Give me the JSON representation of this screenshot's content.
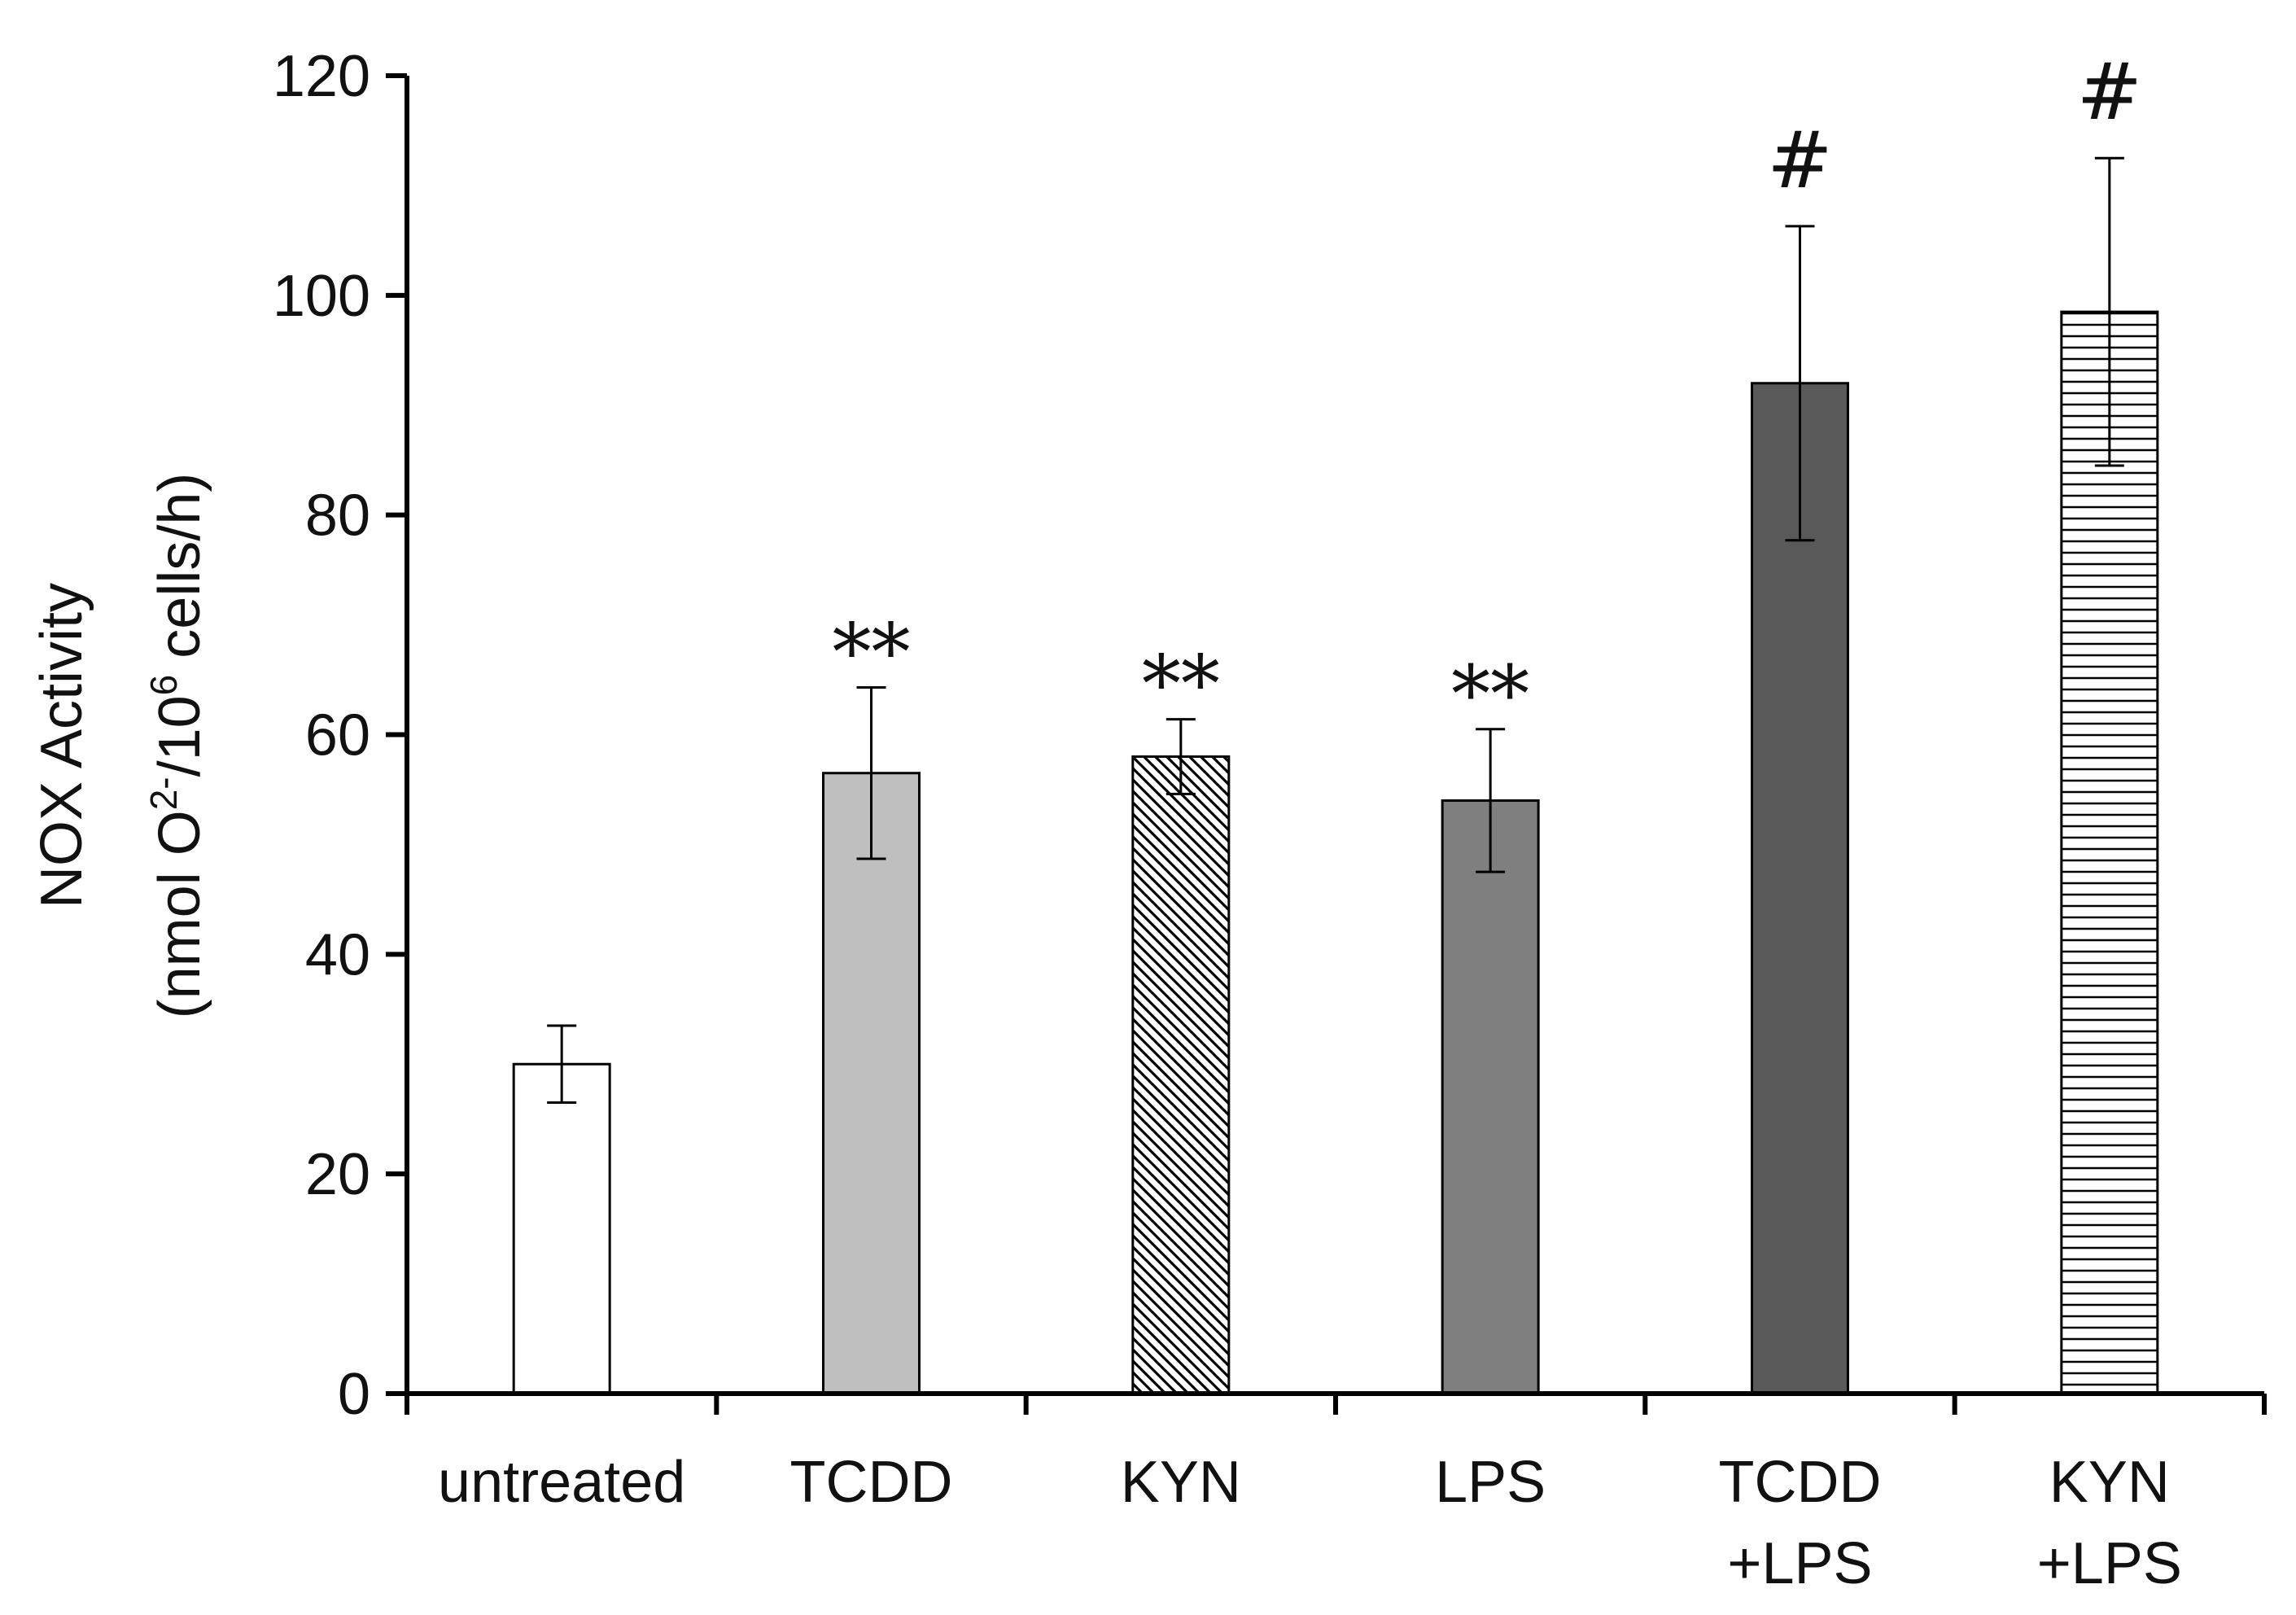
{
  "chart_data": {
    "type": "bar",
    "title": "",
    "xlabel": "",
    "ylabel": {
      "line1": "NOX Activity",
      "line2_prefix": "(nmol O",
      "line2_sup1": "2-",
      "line2_mid": "/10",
      "line2_sup2": "6",
      "line2_suffix": " cells/h)"
    },
    "ylim": [
      0,
      120
    ],
    "yticks": [
      0,
      20,
      40,
      60,
      80,
      100,
      120
    ],
    "grid": false,
    "categories": [
      {
        "lines": [
          "untreated"
        ]
      },
      {
        "lines": [
          "TCDD"
        ]
      },
      {
        "lines": [
          "KYN"
        ]
      },
      {
        "lines": [
          "LPS"
        ]
      },
      {
        "lines": [
          "TCDD",
          "+LPS"
        ]
      },
      {
        "lines": [
          "KYN",
          "+LPS"
        ]
      }
    ],
    "values": [
      30,
      56.5,
      58,
      54,
      92,
      98.5
    ],
    "error": [
      3.5,
      7.8,
      3.4,
      6.5,
      14.3,
      14
    ],
    "significance": [
      "",
      "**",
      "**",
      "**",
      "#",
      "#"
    ],
    "fills": [
      {
        "type": "solid",
        "color": "#ffffff"
      },
      {
        "type": "solid",
        "color": "#bfbfbf"
      },
      {
        "type": "diagonal",
        "color": "#000000"
      },
      {
        "type": "solid",
        "color": "#7f7f7f"
      },
      {
        "type": "solid",
        "color": "#595959"
      },
      {
        "type": "horizontal",
        "color": "#000000"
      }
    ]
  }
}
